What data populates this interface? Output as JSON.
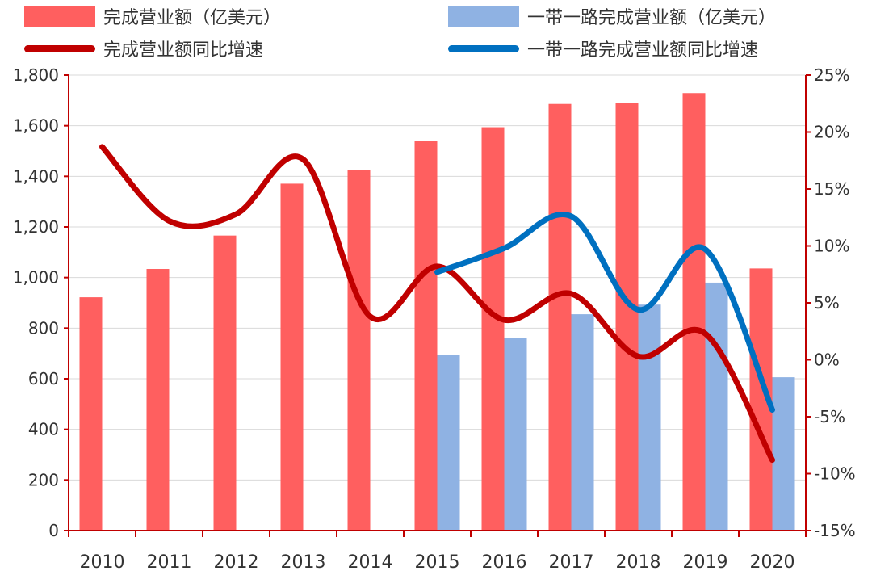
{
  "chart_data": {
    "type": "bar",
    "title": "",
    "categories": [
      "2010",
      "2011",
      "2012",
      "2013",
      "2014",
      "2015",
      "2016",
      "2017",
      "2018",
      "2019",
      "2020"
    ],
    "series": [
      {
        "name": "完成营业额（亿美元）",
        "kind": "bar",
        "axis": "left",
        "color": "#ff5f5f",
        "values": [
          922,
          1034,
          1166,
          1371,
          1424,
          1541,
          1594,
          1686,
          1690,
          1729,
          1036
        ]
      },
      {
        "name": "一带一路完成营业额（亿美元）",
        "kind": "bar",
        "axis": "left",
        "color": "#8fb2e3",
        "values": [
          null,
          null,
          null,
          null,
          null,
          693,
          760,
          855,
          893,
          980,
          606
        ]
      },
      {
        "name": "完成营业额同比增速",
        "kind": "line",
        "axis": "right",
        "color": "#c00000",
        "values": [
          18.7,
          12.2,
          12.8,
          17.6,
          3.8,
          8.2,
          3.5,
          5.8,
          0.3,
          2.3,
          -8.8
        ]
      },
      {
        "name": "一带一路完成营业额同比增速",
        "kind": "line",
        "axis": "right",
        "color": "#0070c0",
        "values": [
          null,
          null,
          null,
          null,
          null,
          7.7,
          9.8,
          12.6,
          4.4,
          9.7,
          -4.4
        ]
      }
    ],
    "y_left": {
      "range": [
        0,
        1800
      ],
      "ticks": [
        0,
        200,
        400,
        600,
        800,
        1000,
        1200,
        1400,
        1600,
        1800
      ],
      "tick_labels": [
        "0",
        "200",
        "400",
        "600",
        "800",
        "1,000",
        "1,200",
        "1,400",
        "1,600",
        "1,800"
      ]
    },
    "y_right": {
      "range": [
        -15,
        25
      ],
      "ticks": [
        -15,
        -10,
        -5,
        0,
        5,
        10,
        15,
        20,
        25
      ],
      "tick_labels": [
        "-15%",
        "-10%",
        "-5%",
        "0%",
        "5%",
        "10%",
        "15%",
        "20%",
        "25%"
      ],
      "axis_color": "#c00000"
    },
    "grid": true,
    "legend_position": "top",
    "xlabel": "",
    "ylabel": ""
  }
}
